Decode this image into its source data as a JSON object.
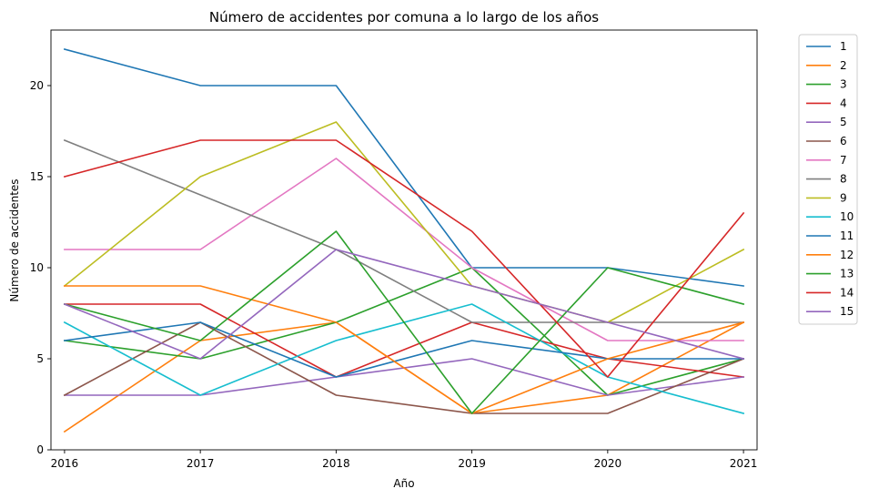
{
  "chart_data": {
    "type": "line",
    "title": "Número de accidentes por comuna a lo largo de los años",
    "xlabel": "Año",
    "ylabel": "Número de accidentes",
    "x": [
      "2016",
      "2017",
      "2018",
      "2019",
      "2020",
      "2021"
    ],
    "xlim": [
      2015.9,
      2021.1
    ],
    "ylim": [
      0,
      23.05
    ],
    "yticks": [
      "0",
      "5",
      "10",
      "15",
      "20"
    ],
    "grid": false,
    "legend_position": "outside-top-right",
    "series": [
      {
        "name": "1",
        "color": "#1f77b4",
        "values": [
          22,
          20,
          20,
          10,
          10,
          9
        ]
      },
      {
        "name": "2",
        "color": "#ff7f0e",
        "values": [
          1,
          6,
          7,
          2,
          3,
          7
        ]
      },
      {
        "name": "3",
        "color": "#2ca02c",
        "values": [
          6,
          5,
          7,
          10,
          3,
          5
        ]
      },
      {
        "name": "4",
        "color": "#d62728",
        "values": [
          8,
          8,
          4,
          7,
          5,
          4
        ]
      },
      {
        "name": "5",
        "color": "#9467bd",
        "values": [
          3,
          3,
          4,
          5,
          3,
          4
        ]
      },
      {
        "name": "6",
        "color": "#8c564b",
        "values": [
          3,
          7,
          3,
          2,
          2,
          5
        ]
      },
      {
        "name": "7",
        "color": "#e377c2",
        "values": [
          11,
          11,
          16,
          10,
          6,
          6
        ]
      },
      {
        "name": "8",
        "color": "#7f7f7f",
        "values": [
          17,
          14,
          11,
          7,
          7,
          7
        ]
      },
      {
        "name": "9",
        "color": "#bcbd22",
        "values": [
          9,
          15,
          18,
          9,
          7,
          11
        ]
      },
      {
        "name": "10",
        "color": "#17becf",
        "values": [
          7,
          3,
          6,
          8,
          4,
          2
        ]
      },
      {
        "name": "11",
        "color": "#1f77b4",
        "values": [
          6,
          7,
          4,
          6,
          5,
          5
        ]
      },
      {
        "name": "12",
        "color": "#ff7f0e",
        "values": [
          9,
          9,
          7,
          2,
          5,
          7
        ]
      },
      {
        "name": "13",
        "color": "#2ca02c",
        "values": [
          8,
          6,
          12,
          2,
          10,
          8
        ]
      },
      {
        "name": "14",
        "color": "#d62728",
        "values": [
          15,
          17,
          17,
          12,
          4,
          13
        ]
      },
      {
        "name": "15",
        "color": "#9467bd",
        "values": [
          8,
          5,
          11,
          9,
          7,
          5
        ]
      }
    ]
  }
}
